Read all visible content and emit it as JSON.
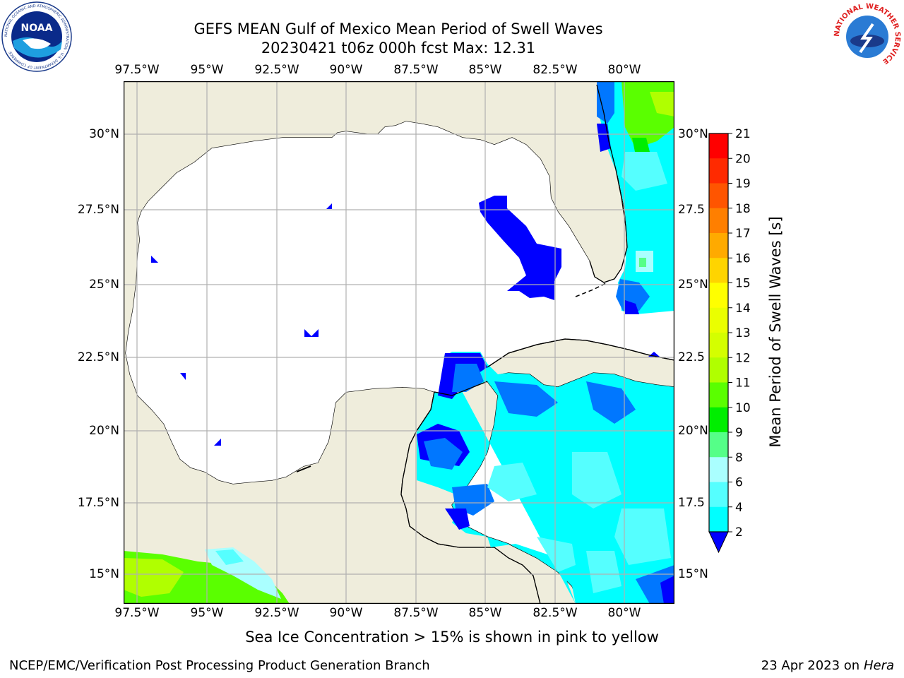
{
  "title_line1": "GEFS MEAN Gulf of Mexico Mean Period of Swell Waves",
  "title_line2": "20230421 t06z 000h fcst   Max: 12.31",
  "lon_ticks": [
    "97.5°W",
    "95°W",
    "92.5°W",
    "90°W",
    "87.5°W",
    "85°W",
    "82.5°W",
    "80°W"
  ],
  "lat_ticks_left": [
    "30°N",
    "27.5°N",
    "25°N",
    "22.5°N",
    "20°N",
    "17.5°N",
    "15°N"
  ],
  "lat_ticks_right": [
    "30°N",
    "27.5",
    "25°N",
    "22.5",
    "20°N",
    "17.5",
    "15°N"
  ],
  "colorbar": {
    "label": "Mean Period of Swell Waves [s]",
    "ticks": [
      "21",
      "20",
      "19",
      "18",
      "17",
      "16",
      "15",
      "14",
      "13",
      "12",
      "11",
      "10",
      "9",
      "8",
      "6",
      "4",
      "2"
    ],
    "colors": [
      "#ff0000",
      "#ff2a00",
      "#ff5500",
      "#ff7f00",
      "#ffaa00",
      "#ffd400",
      "#ffff00",
      "#eaff00",
      "#d4ff00",
      "#b0ff00",
      "#5aff00",
      "#00ee00",
      "#55ff88",
      "#aaffff",
      "#55ffff",
      "#00ffff",
      "#0077ff",
      "#0000ff"
    ]
  },
  "sea_ice_note": "Sea Ice Concentration > 15% is shown in pink to yellow",
  "footer_left": "NCEP/EMC/Verification Post Processing Product Generation Branch",
  "footer_right_date": "23 Apr 2023 on",
  "footer_right_host": "Hera",
  "logos": {
    "noaa_text": "NOAA",
    "noaa_ring": "NATIONAL OCEANIC AND ATMOSPHERIC ADMINISTRATION · U.S. DEPARTMENT OF COMMERCE",
    "nws_ring": "NATIONAL WEATHER SERVICE"
  },
  "colors": {
    "land": "#efeddc",
    "ocean": "#ffffff",
    "grid": "#b0b0b0"
  }
}
